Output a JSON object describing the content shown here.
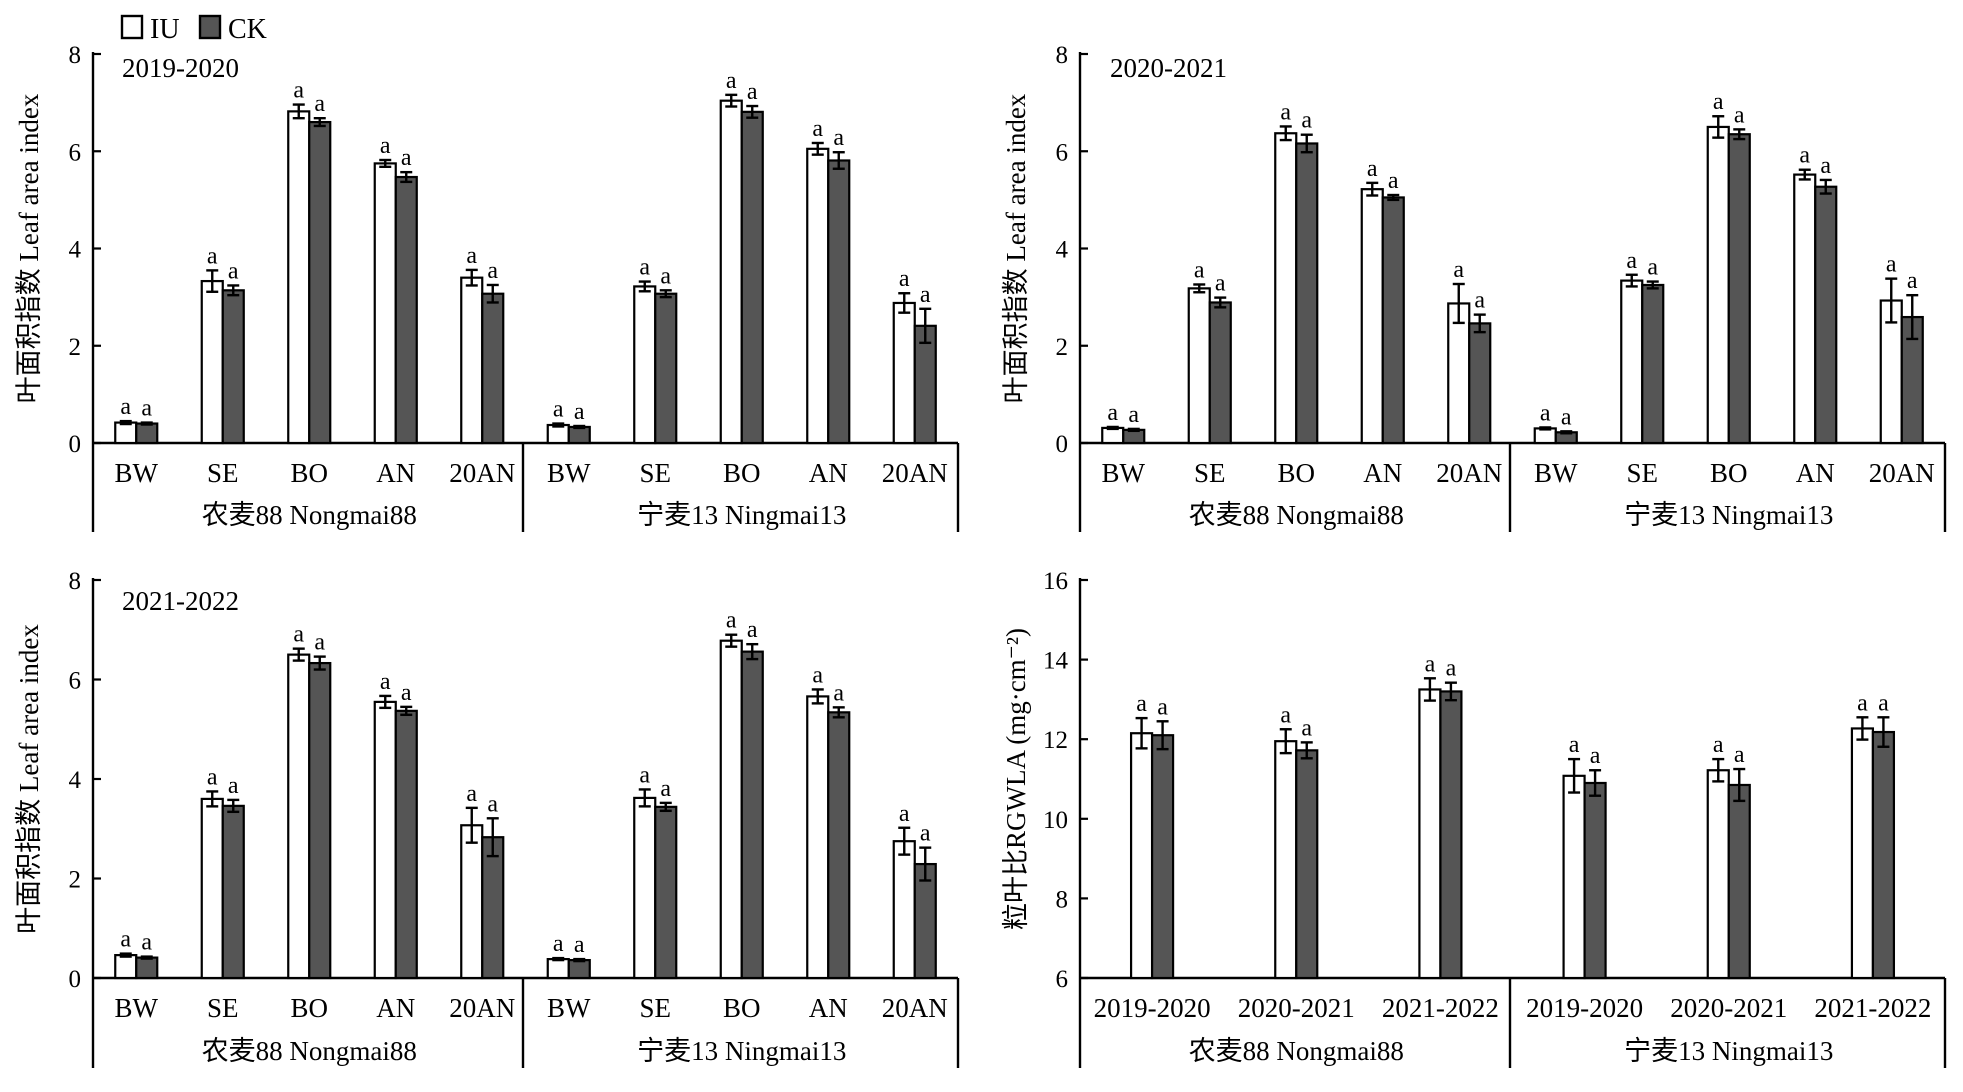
{
  "legend": {
    "items": [
      {
        "label": "IU",
        "color": "#ffffff"
      },
      {
        "label": "CK",
        "color": "#555555"
      }
    ]
  },
  "colors": {
    "IU": "#ffffff",
    "CK": "#555555",
    "stroke": "#000000"
  },
  "chart_data": [
    {
      "type": "bar",
      "annotation": "2019-2020",
      "ylabel": "叶面积指数 Leaf area index",
      "ylim": [
        0,
        8
      ],
      "yticks": [
        "0",
        "2",
        "4",
        "6",
        "8"
      ],
      "groups": [
        {
          "label": "农麦88 Nongmai88",
          "categories": [
            "BW",
            "SE",
            "BO",
            "AN",
            "20AN"
          ]
        },
        {
          "label": "宁麦13 Ningmai13",
          "categories": [
            "BW",
            "SE",
            "BO",
            "AN",
            "20AN"
          ]
        }
      ],
      "series": [
        {
          "name": "IU",
          "values": [
            0.42,
            3.33,
            6.82,
            5.75,
            3.4,
            0.37,
            3.22,
            7.04,
            6.05,
            2.88
          ],
          "errors": [
            0.03,
            0.22,
            0.14,
            0.07,
            0.16,
            0.03,
            0.1,
            0.12,
            0.12,
            0.2
          ],
          "sig": [
            "a",
            "a",
            "a",
            "a",
            "a",
            "a",
            "a",
            "a",
            "a",
            "a"
          ]
        },
        {
          "name": "CK",
          "values": [
            0.4,
            3.14,
            6.6,
            5.47,
            3.07,
            0.33,
            3.07,
            6.81,
            5.81,
            2.41
          ],
          "errors": [
            0.02,
            0.1,
            0.08,
            0.1,
            0.18,
            0.02,
            0.07,
            0.12,
            0.17,
            0.35
          ],
          "sig": [
            "a",
            "a",
            "a",
            "a",
            "a",
            "a",
            "a",
            "a",
            "a",
            "a"
          ]
        }
      ]
    },
    {
      "type": "bar",
      "annotation": "2020-2021",
      "ylabel": "叶面积指数 Leaf area index",
      "ylim": [
        0,
        8
      ],
      "yticks": [
        "0",
        "2",
        "4",
        "6",
        "8"
      ],
      "groups": [
        {
          "label": "农麦88 Nongmai88",
          "categories": [
            "BW",
            "SE",
            "BO",
            "AN",
            "20AN"
          ]
        },
        {
          "label": "宁麦13 Ningmai13",
          "categories": [
            "BW",
            "SE",
            "BO",
            "AN",
            "20AN"
          ]
        }
      ],
      "series": [
        {
          "name": "IU",
          "values": [
            0.31,
            3.18,
            6.37,
            5.22,
            2.87,
            0.3,
            3.34,
            6.5,
            5.52,
            2.93
          ],
          "errors": [
            0.02,
            0.08,
            0.14,
            0.13,
            0.4,
            0.02,
            0.12,
            0.22,
            0.1,
            0.45
          ],
          "sig": [
            "a",
            "a",
            "a",
            "a",
            "a",
            "a",
            "a",
            "a",
            "a",
            "a"
          ]
        },
        {
          "name": "CK",
          "values": [
            0.27,
            2.89,
            6.16,
            5.05,
            2.46,
            0.22,
            3.25,
            6.35,
            5.27,
            2.59
          ],
          "errors": [
            0.02,
            0.1,
            0.18,
            0.05,
            0.18,
            0.02,
            0.07,
            0.1,
            0.14,
            0.45
          ],
          "sig": [
            "a",
            "a",
            "a",
            "a",
            "a",
            "a",
            "a",
            "a",
            "a",
            "a"
          ]
        }
      ]
    },
    {
      "type": "bar",
      "annotation": "2021-2022",
      "ylabel": "叶面积指数 Leaf area index",
      "ylim": [
        0,
        8
      ],
      "yticks": [
        "0",
        "2",
        "4",
        "6",
        "8"
      ],
      "groups": [
        {
          "label": "农麦88 Nongmai88",
          "categories": [
            "BW",
            "SE",
            "BO",
            "AN",
            "20AN"
          ]
        },
        {
          "label": "宁麦13 Ningmai13",
          "categories": [
            "BW",
            "SE",
            "BO",
            "AN",
            "20AN"
          ]
        }
      ],
      "series": [
        {
          "name": "IU",
          "values": [
            0.46,
            3.6,
            6.5,
            5.55,
            3.07,
            0.38,
            3.62,
            6.78,
            5.66,
            2.75
          ],
          "errors": [
            0.03,
            0.15,
            0.12,
            0.12,
            0.35,
            0.02,
            0.17,
            0.12,
            0.14,
            0.27
          ],
          "sig": [
            "a",
            "a",
            "a",
            "a",
            "a",
            "a",
            "a",
            "a",
            "a",
            "a"
          ]
        },
        {
          "name": "CK",
          "values": [
            0.41,
            3.46,
            6.33,
            5.37,
            2.83,
            0.36,
            3.44,
            6.56,
            5.34,
            2.29
          ],
          "errors": [
            0.02,
            0.12,
            0.13,
            0.08,
            0.38,
            0.02,
            0.08,
            0.15,
            0.1,
            0.33
          ],
          "sig": [
            "a",
            "a",
            "a",
            "a",
            "a",
            "a",
            "a",
            "a",
            "a",
            "a"
          ]
        }
      ]
    },
    {
      "type": "bar",
      "annotation": "",
      "ylabel": "粒叶比RGWLA (mg·cm⁻²)",
      "ylim": [
        6,
        16
      ],
      "yticks": [
        "6",
        "8",
        "10",
        "12",
        "14",
        "16"
      ],
      "groups": [
        {
          "label": "农麦88 Nongmai88",
          "categories": [
            "2019-2020",
            "2020-2021",
            "2021-2022"
          ]
        },
        {
          "label": "宁麦13 Ningmai13",
          "categories": [
            "2019-2020",
            "2020-2021",
            "2021-2022"
          ]
        }
      ],
      "series": [
        {
          "name": "IU",
          "values": [
            12.15,
            11.95,
            13.25,
            11.08,
            11.22,
            12.27
          ],
          "errors": [
            0.38,
            0.3,
            0.28,
            0.42,
            0.28,
            0.28
          ],
          "sig": [
            "a",
            "a",
            "a",
            "a",
            "a",
            "a"
          ]
        },
        {
          "name": "CK",
          "values": [
            12.1,
            11.72,
            13.2,
            10.9,
            10.85,
            12.18
          ],
          "errors": [
            0.35,
            0.2,
            0.22,
            0.32,
            0.4,
            0.37
          ],
          "sig": [
            "a",
            "a",
            "a",
            "a",
            "a",
            "a"
          ]
        }
      ]
    }
  ]
}
